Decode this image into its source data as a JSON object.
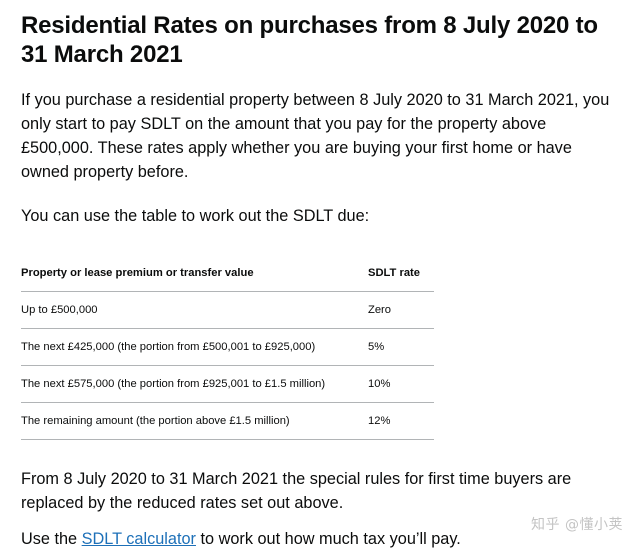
{
  "heading": "Residential Rates on purchases from 8 July 2020 to 31 March 2021",
  "intro": "If you purchase a residential property between 8 July 2020 to 31 March 2021, you only start to pay SDLT on the amount that you pay for the property above £500,000. These rates apply whether you are buying your first home or have owned property before.",
  "use_table": "You can use the table to work out the SDLT due:",
  "table": {
    "headers": [
      "Property or lease premium or transfer value",
      "SDLT rate"
    ],
    "rows": [
      {
        "value": "Up to £500,000",
        "rate": "Zero"
      },
      {
        "value": "The next £425,000 (the portion from £500,001 to £925,000)",
        "rate": "5%"
      },
      {
        "value": "The next £575,000 (the portion from £925,001 to £1.5 million)",
        "rate": "10%"
      },
      {
        "value": "The remaining amount (the portion above £1.5 million)",
        "rate": "12%"
      }
    ]
  },
  "first_time_buyers": "From 8 July 2020 to 31 March 2021 the special rules for first time buyers are replaced by the reduced rates set out above.",
  "calculator": {
    "prefix": "Use the ",
    "link": "SDLT calculator",
    "suffix": " to work out how much tax you’ll pay."
  },
  "watermark": "知乎 @懂小荚"
}
